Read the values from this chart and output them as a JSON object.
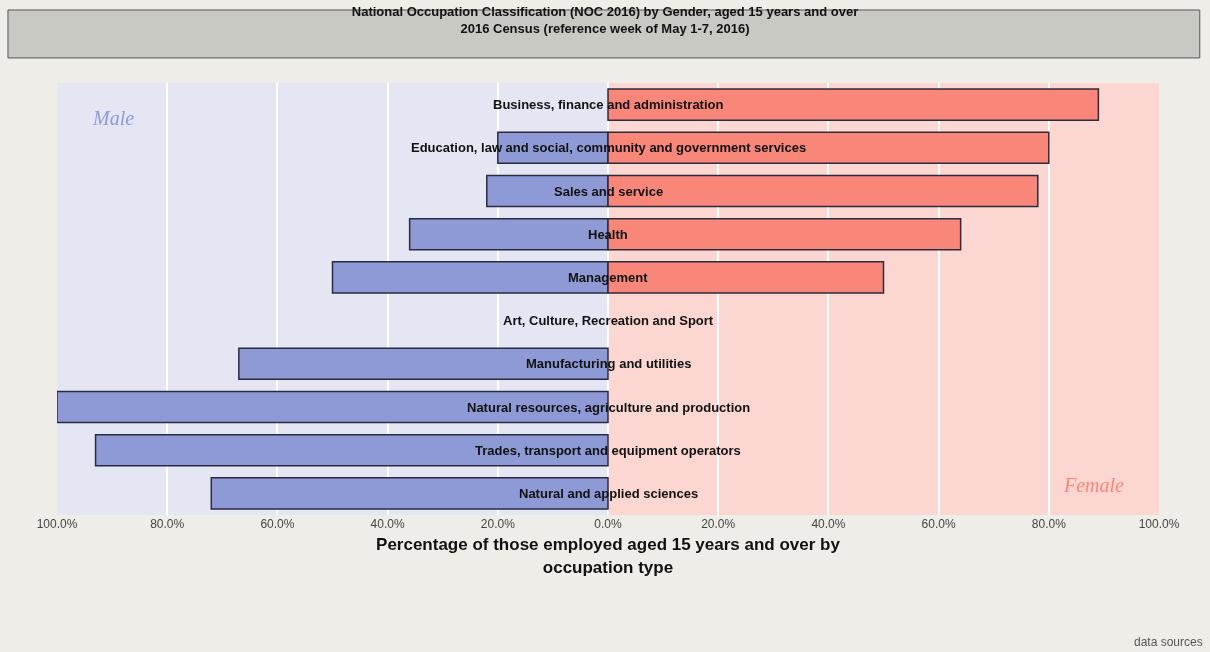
{
  "chart_data": {
    "type": "bar",
    "orientation": "horizontal",
    "title": "National Occupation Classification (NOC 2016) by Gender, aged 15 years and over\n2016 Census (reference week of May 1-7, 2016)",
    "xlabel": "Percentage of those employed aged 15 years and over by occupation type",
    "categories": [
      "Business, finance and administration",
      "Education, law and social, community and government services",
      "Sales and service",
      "Health",
      "Management",
      "Art, Culture, Recreation and Sport",
      "Manufacturing and utilities",
      "Natural resources, agriculture and production",
      "Trades, transport and equipment operators",
      "Natural and applied sciences"
    ],
    "series": [
      {
        "name": "Male",
        "color": "#8e9ad6",
        "values": [
          null,
          -20,
          -22,
          -36,
          -50,
          null,
          -67,
          -100,
          -93,
          -72
        ]
      },
      {
        "name": "Female",
        "color": "#f8877a",
        "values": [
          89,
          80,
          78,
          64,
          50,
          null,
          null,
          null,
          null,
          null
        ]
      }
    ],
    "xlim": [
      -100,
      100
    ],
    "xticks": [
      {
        "value": -100,
        "label": "100.0%"
      },
      {
        "value": -80,
        "label": "80.0%"
      },
      {
        "value": -60,
        "label": "60.0%"
      },
      {
        "value": -40,
        "label": "40.0%"
      },
      {
        "value": -20,
        "label": "20.0%"
      },
      {
        "value": 0,
        "label": "0.0%"
      },
      {
        "value": 20,
        "label": "20.0%"
      },
      {
        "value": 40,
        "label": "40.0%"
      },
      {
        "value": 60,
        "label": "60.0%"
      },
      {
        "value": 80,
        "label": "80.0%"
      },
      {
        "value": 100,
        "label": "100.0%"
      }
    ],
    "bands": [
      {
        "axis": "x",
        "from": -100,
        "to": 0,
        "color": "#e4e6f4"
      },
      {
        "axis": "x",
        "from": 0,
        "to": 100,
        "color": "#fcd6d1"
      }
    ],
    "grid": "x",
    "legend": false,
    "annotations": [
      "data sources"
    ]
  }
}
